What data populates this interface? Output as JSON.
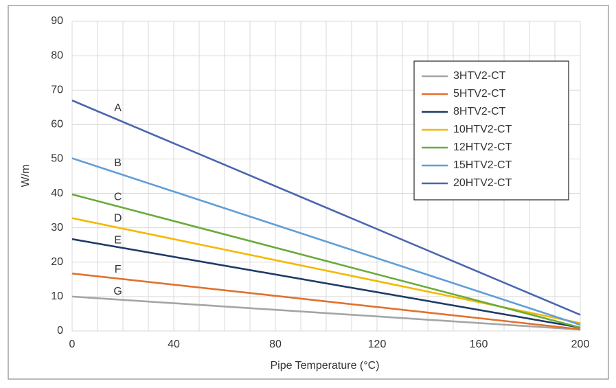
{
  "chart_data": {
    "type": "line",
    "x_label": "Pipe Temperature (°C)",
    "y_label": "W/m",
    "x": [
      0,
      200
    ],
    "series": [
      {
        "name": "3HTV2-CT",
        "color": "#a5a5a5",
        "values": [
          10,
          0.4
        ]
      },
      {
        "name": "5HTV2-CT",
        "color": "#e2702e",
        "values": [
          16.7,
          0.5
        ]
      },
      {
        "name": "8HTV2-CT",
        "color": "#1f3a68",
        "values": [
          26.7,
          1.0
        ]
      },
      {
        "name": "10HTV2-CT",
        "color": "#f4b800",
        "values": [
          32.8,
          2.3
        ]
      },
      {
        "name": "12HTV2-CT",
        "color": "#6aab3b",
        "values": [
          39.7,
          1.0
        ]
      },
      {
        "name": "15HTV2-CT",
        "color": "#5f9ed8",
        "values": [
          50.2,
          1.8
        ]
      },
      {
        "name": "20HTV2-CT",
        "color": "#4a66b0",
        "values": [
          67,
          4.7
        ]
      }
    ],
    "annotations": [
      {
        "text": "A",
        "x": 18,
        "y": 64.7
      },
      {
        "text": "B",
        "x": 18,
        "y": 48.7
      },
      {
        "text": "C",
        "x": 18,
        "y": 38.9
      },
      {
        "text": "D",
        "x": 18,
        "y": 32.7
      },
      {
        "text": "E",
        "x": 18,
        "y": 26.3
      },
      {
        "text": "F",
        "x": 18,
        "y": 17.8
      },
      {
        "text": "G",
        "x": 18,
        "y": 11.4
      }
    ],
    "xlim": [
      0,
      200
    ],
    "xticks": [
      0,
      40,
      80,
      120,
      160,
      200
    ],
    "ylim": [
      0,
      90
    ],
    "yticks": [
      0,
      10,
      20,
      30,
      40,
      50,
      60,
      70,
      80,
      90
    ],
    "grid": true,
    "legend": "upper right"
  }
}
